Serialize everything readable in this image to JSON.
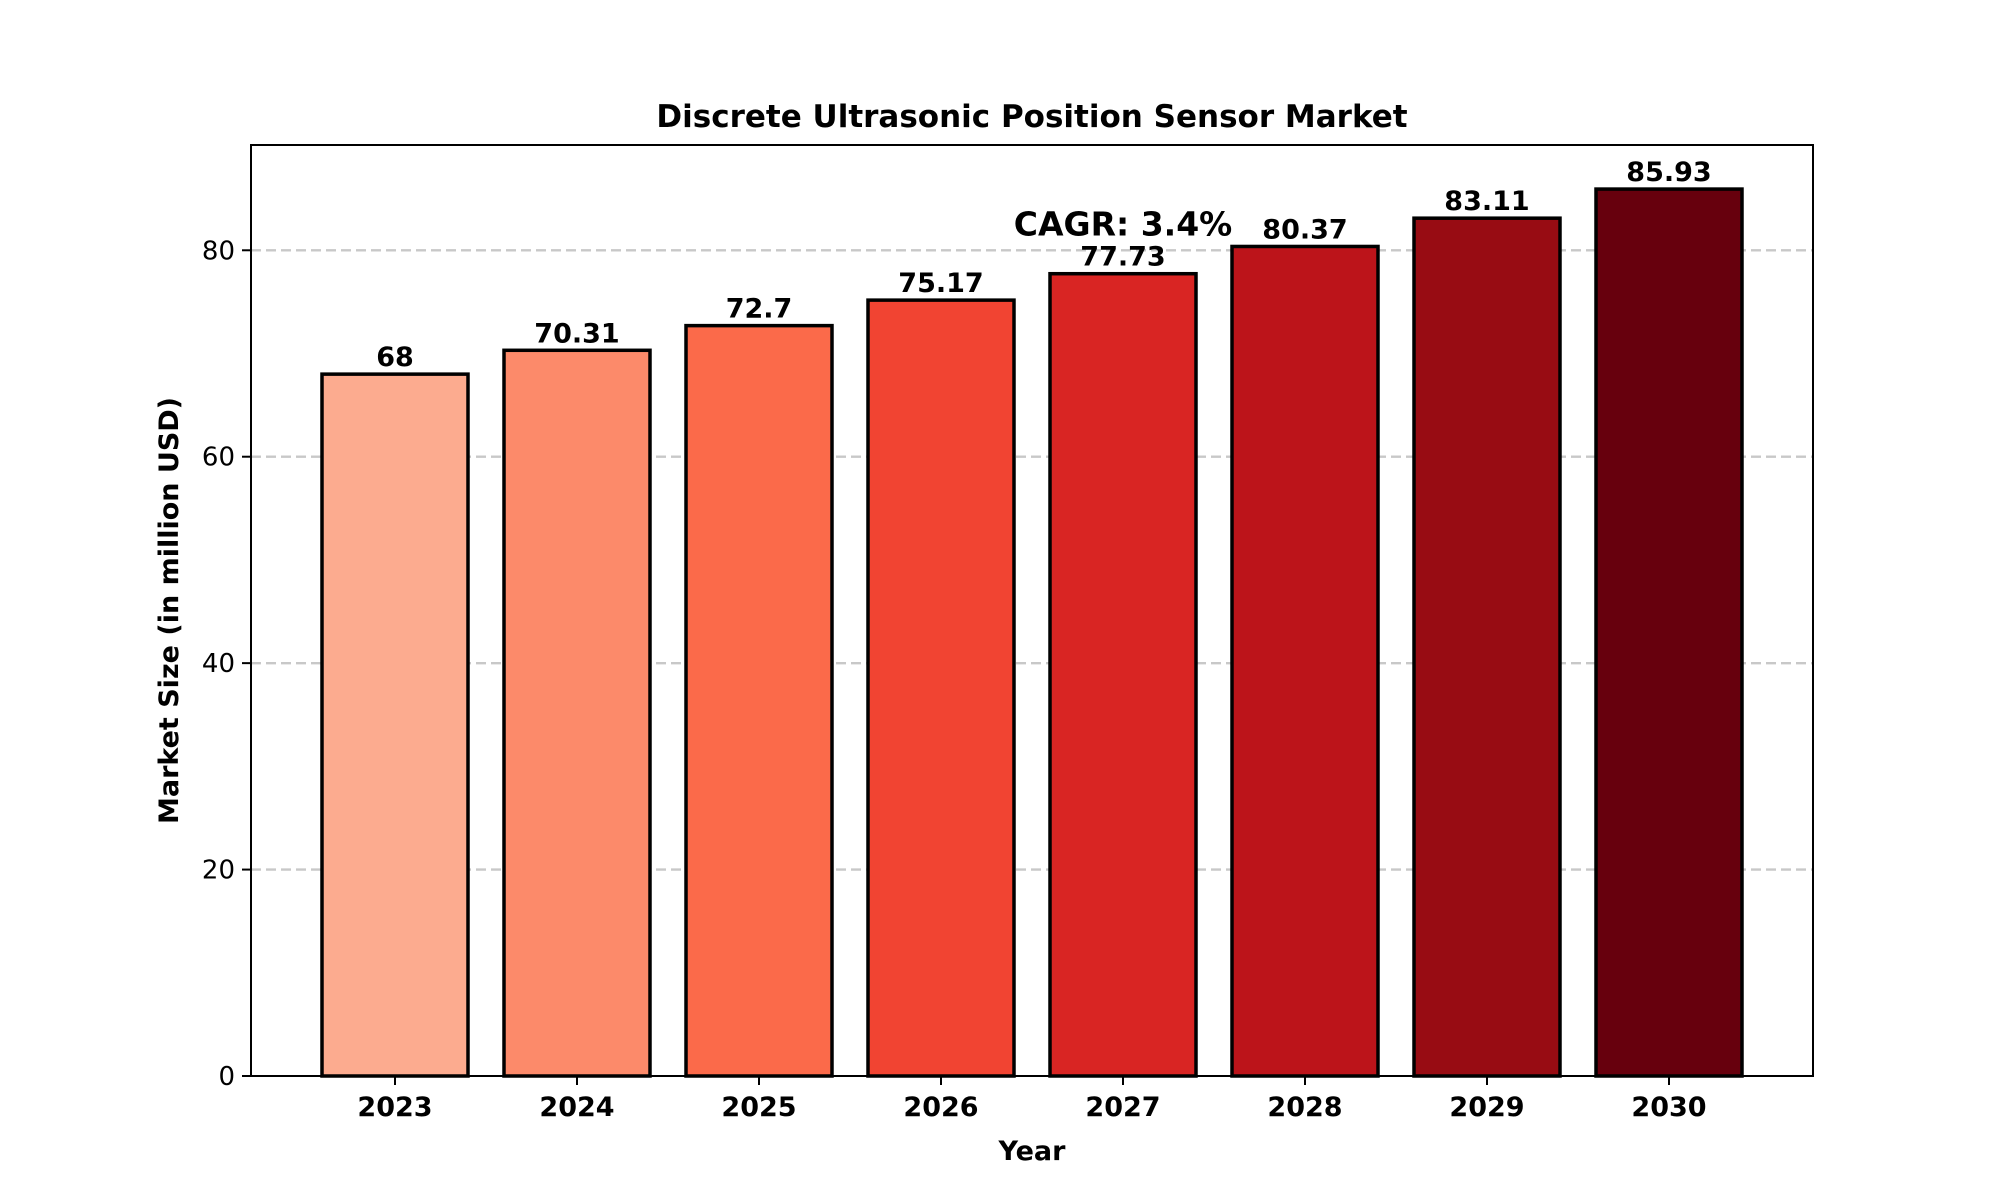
{
  "chart_data": {
    "type": "bar",
    "title": "Discrete Ultrasonic Position Sensor Market",
    "xlabel": "Year",
    "ylabel": "Market Size (in million USD)",
    "categories": [
      "2023",
      "2024",
      "2025",
      "2026",
      "2027",
      "2028",
      "2029",
      "2030"
    ],
    "values": [
      68,
      70.31,
      72.7,
      75.17,
      77.73,
      80.37,
      83.11,
      85.93
    ],
    "data_labels": [
      "68",
      "70.31",
      "72.7",
      "75.17",
      "77.73",
      "80.37",
      "83.11",
      "85.93"
    ],
    "ylim": [
      0,
      90.2
    ],
    "yticks": [
      0,
      20,
      40,
      60,
      80
    ],
    "ytick_labels": [
      "0",
      "20",
      "40",
      "60",
      "80"
    ],
    "grid": "horizontal dashed",
    "bar_colors": [
      "#fcab8f",
      "#fc8a6a",
      "#fb6a4a",
      "#f14432",
      "#d92523",
      "#bc141a",
      "#980c13",
      "#67000d"
    ],
    "edge_color": "#000000",
    "annotation": {
      "text": "CAGR: 3.4%",
      "x": "2027",
      "y": 82
    }
  }
}
